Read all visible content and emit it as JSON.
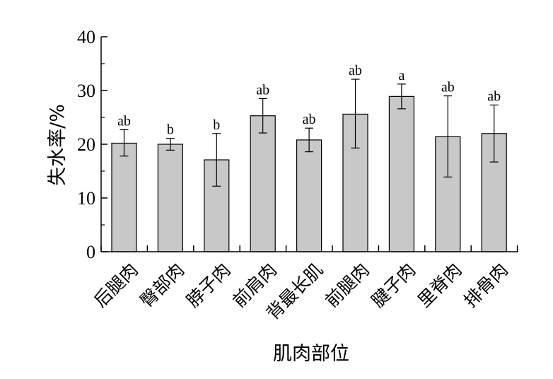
{
  "chart_data": {
    "type": "bar",
    "title": "",
    "xlabel": "肌肉部位",
    "ylabel": "失水率/%",
    "ylim": [
      0,
      40
    ],
    "yticks": [
      0,
      10,
      20,
      30,
      40
    ],
    "grid": false,
    "bar_color": "#c8c8c8",
    "categories": [
      "后腿肉",
      "臀部肉",
      "脖子肉",
      "前肩肉",
      "背最长肌",
      "前腿肉",
      "腱子肉",
      "里脊肉",
      "排骨肉"
    ],
    "values": [
      20.2,
      20.0,
      17.1,
      25.3,
      20.8,
      25.6,
      28.9,
      21.4,
      22.0
    ],
    "error_upper": [
      22.7,
      21.1,
      22.0,
      28.5,
      23.0,
      32.1,
      31.2,
      29.0,
      27.3
    ],
    "error_lower": [
      17.8,
      18.9,
      12.2,
      22.1,
      18.6,
      19.3,
      26.6,
      13.9,
      16.7
    ],
    "significance": [
      "ab",
      "b",
      "b",
      "ab",
      "ab",
      "ab",
      "a",
      "ab",
      "ab"
    ]
  }
}
